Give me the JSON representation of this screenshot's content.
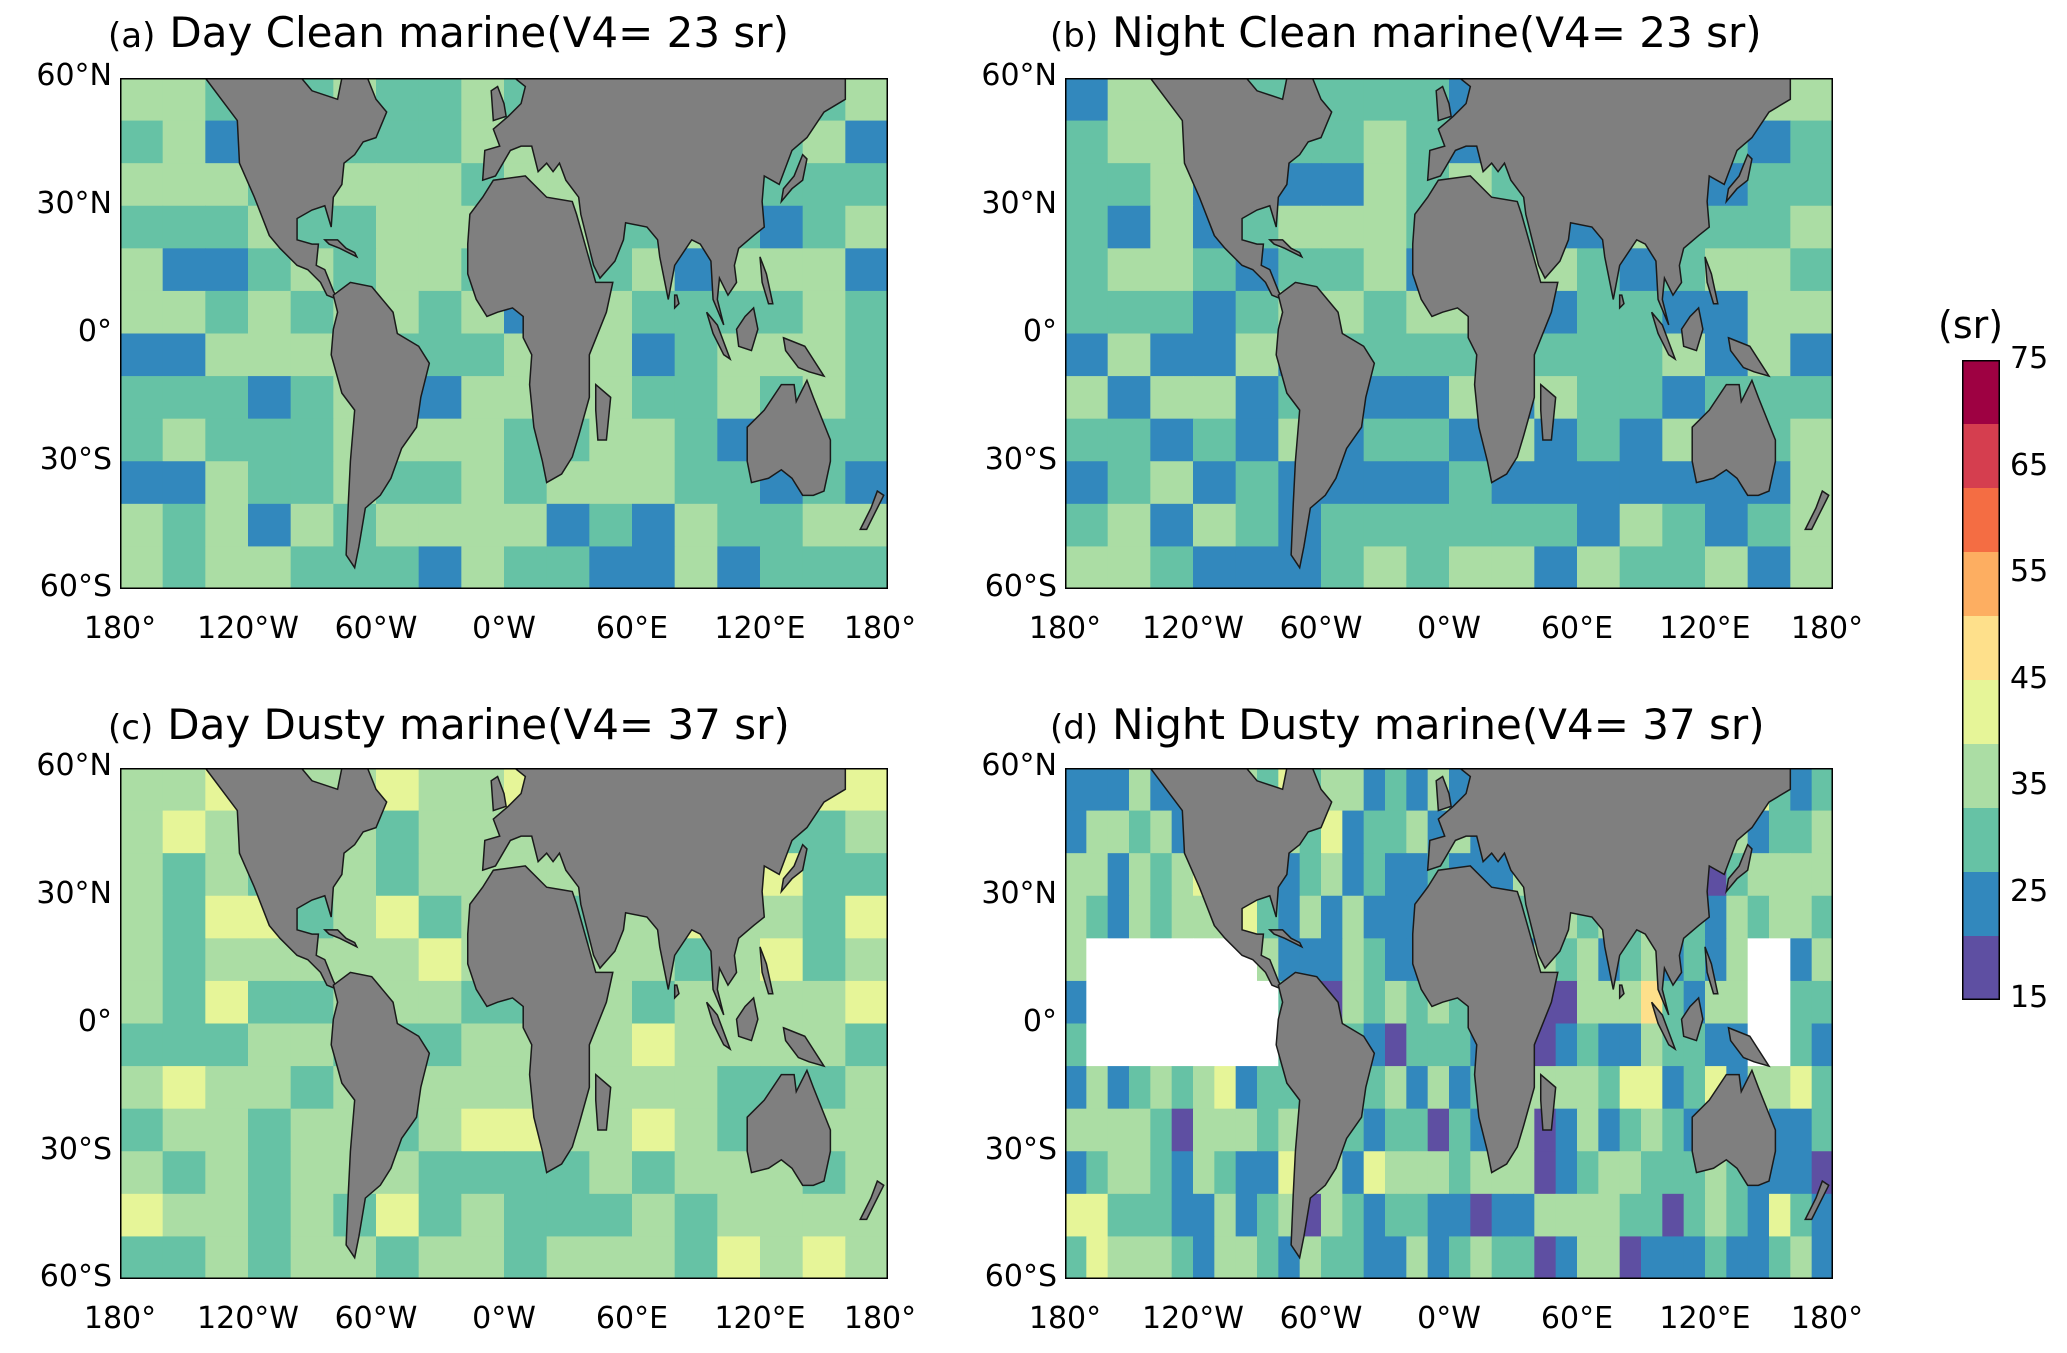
{
  "panels": [
    {
      "tag": "(a)",
      "title": "Day Clean marine(V4= 23 sr)"
    },
    {
      "tag": "(b)",
      "title": "Night Clean marine(V4= 23 sr)"
    },
    {
      "tag": "(c)",
      "title": "Day Dusty marine(V4= 37 sr)"
    },
    {
      "tag": "(d)",
      "title": "Night Dusty marine(V4= 37 sr)"
    }
  ],
  "x_ticks": [
    "180°",
    "120°W",
    "60°W",
    "0°W",
    "60°E",
    "120°E",
    "180°"
  ],
  "y_ticks": [
    "60°N",
    "30°N",
    "0°",
    "30°S",
    "60°S"
  ],
  "colorbar": {
    "label": "(sr)",
    "ticks": [
      "75",
      "65",
      "55",
      "45",
      "35",
      "25",
      "15"
    ],
    "colors": [
      "#9e0142",
      "#d53e4f",
      "#f46d43",
      "#fdae61",
      "#fee08b",
      "#e6f598",
      "#abdda4",
      "#66c2a5",
      "#3288bd",
      "#5e4fa2"
    ],
    "range": [
      15,
      75
    ],
    "step": 5
  },
  "colors": {
    "land": "#7f7f7f",
    "coast": "#1a1a1a",
    "missing": "#ffffff"
  }
}
